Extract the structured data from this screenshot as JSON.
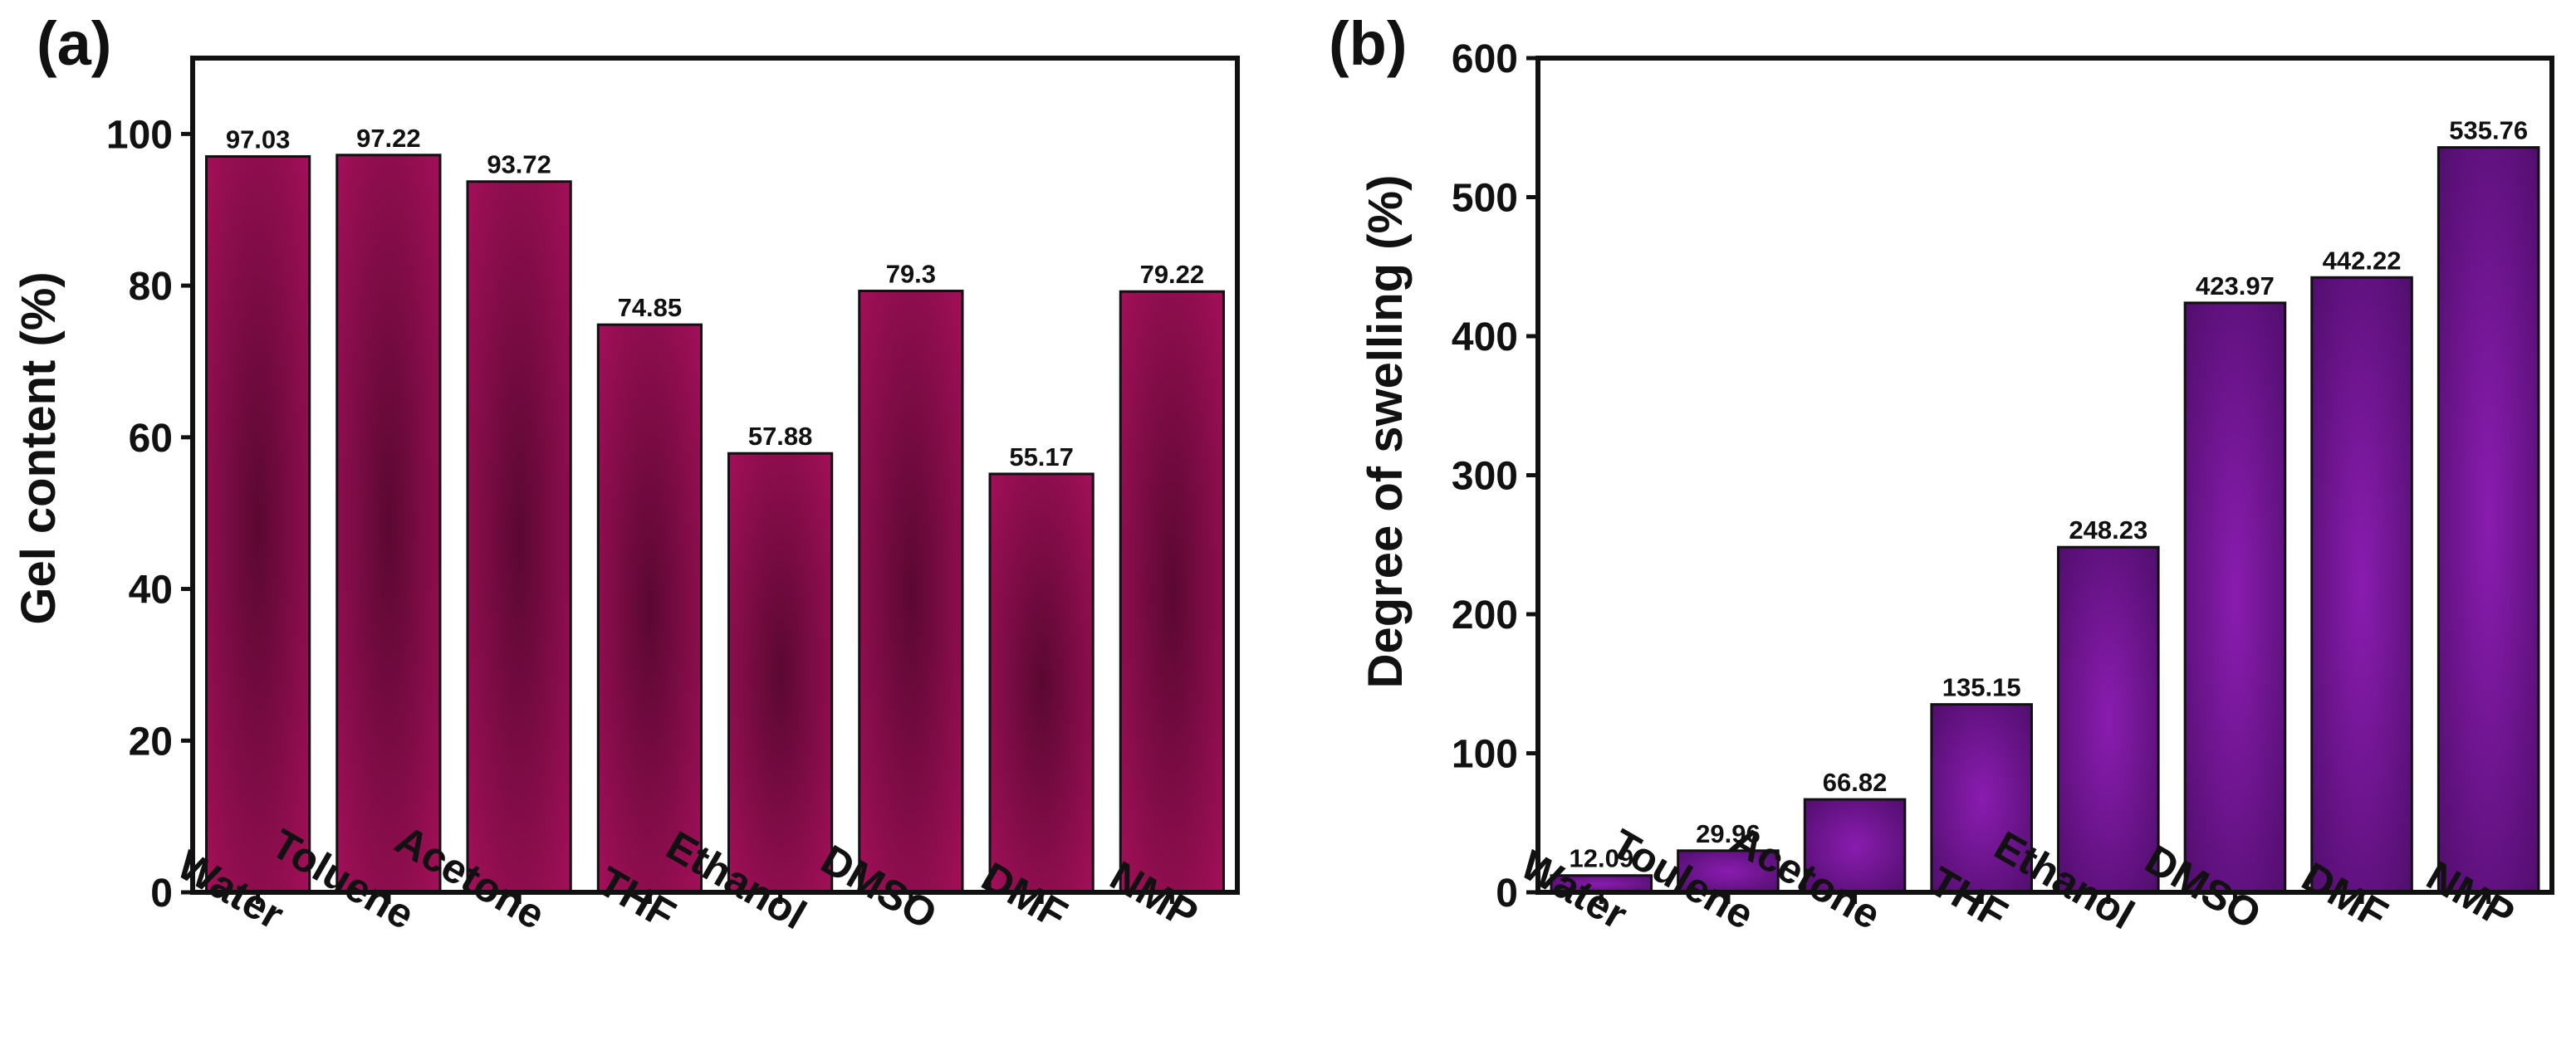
{
  "chart_data": [
    {
      "type": "bar",
      "panel_label": "(a)",
      "title": "",
      "xlabel": "",
      "ylabel": "Gel content (%)",
      "categories": [
        "Water",
        "Toluene",
        "Acetone",
        "THF",
        "Ethanol",
        "DMSO",
        "DMF",
        "NMP"
      ],
      "values": [
        97.03,
        97.22,
        93.72,
        74.85,
        57.88,
        79.3,
        55.17,
        79.22
      ],
      "value_labels": [
        "97.03",
        "97.22",
        "93.72",
        "74.85",
        "57.88",
        "79.3",
        "55.17",
        "79.22"
      ],
      "ylim": [
        0,
        110
      ],
      "yticks": [
        0,
        20,
        40,
        60,
        80,
        100
      ],
      "ytick_labels": [
        "0",
        "20",
        "40",
        "60",
        "80",
        "100"
      ],
      "bar_color": "#a8105c",
      "bar_shade_color": "#5a0832",
      "grid": false,
      "legend": "none"
    },
    {
      "type": "bar",
      "panel_label": "(b)",
      "title": "",
      "xlabel": "",
      "ylabel": "Degree of swelling (%)",
      "categories": [
        "Water",
        "Toulene",
        "Acetone",
        "THF",
        "Ethanol",
        "DMSO",
        "DMF",
        "NMP"
      ],
      "values": [
        12.09,
        29.96,
        66.82,
        135.15,
        248.23,
        423.97,
        442.22,
        535.76
      ],
      "value_labels": [
        "12.09",
        "29.96",
        "66.82",
        "135.15",
        "248.23",
        "423.97",
        "442.22",
        "535.76"
      ],
      "ylim": [
        0,
        600
      ],
      "yticks": [
        0,
        100,
        200,
        300,
        400,
        500,
        600
      ],
      "ytick_labels": [
        "0",
        "100",
        "200",
        "300",
        "400",
        "500",
        "600"
      ],
      "bar_color": "#4d0d68",
      "bar_shade_color": "#8a1cb0",
      "grid": false,
      "legend": "none"
    }
  ]
}
